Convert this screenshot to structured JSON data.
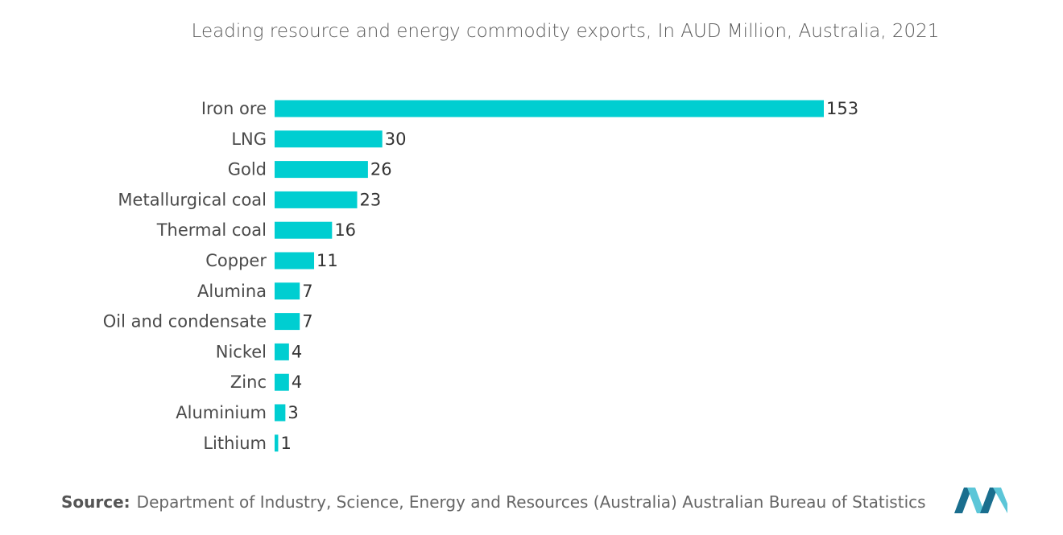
{
  "colors": {
    "bar": "#00CED1",
    "logo_dark": "#1a6e8e",
    "logo_light": "#5cc6d8"
  },
  "chart_data": {
    "type": "bar",
    "orientation": "horizontal",
    "title": "Leading resource and energy commodity exports, In AUD Million, Australia, 2021",
    "categories": [
      "Iron ore",
      "LNG",
      "Gold",
      "Metallurgical coal",
      "Thermal coal",
      "Copper",
      "Alumina",
      "Oil and condensate",
      "Nickel",
      "Zinc",
      "Aluminium",
      "Lithium"
    ],
    "values": [
      153,
      30,
      26,
      23,
      16,
      11,
      7,
      7,
      4,
      4,
      3,
      1
    ],
    "xlabel": "",
    "ylabel": "",
    "xlim": [
      0,
      153
    ],
    "grid": false,
    "legend": "none",
    "data_labels": true
  },
  "source": {
    "prefix": "Source:",
    "text": "Department of Industry, Science, Energy and Resources (Australia) Australian Bureau of Statistics"
  },
  "logo": {
    "icon": "mordor-intelligence-logo"
  }
}
